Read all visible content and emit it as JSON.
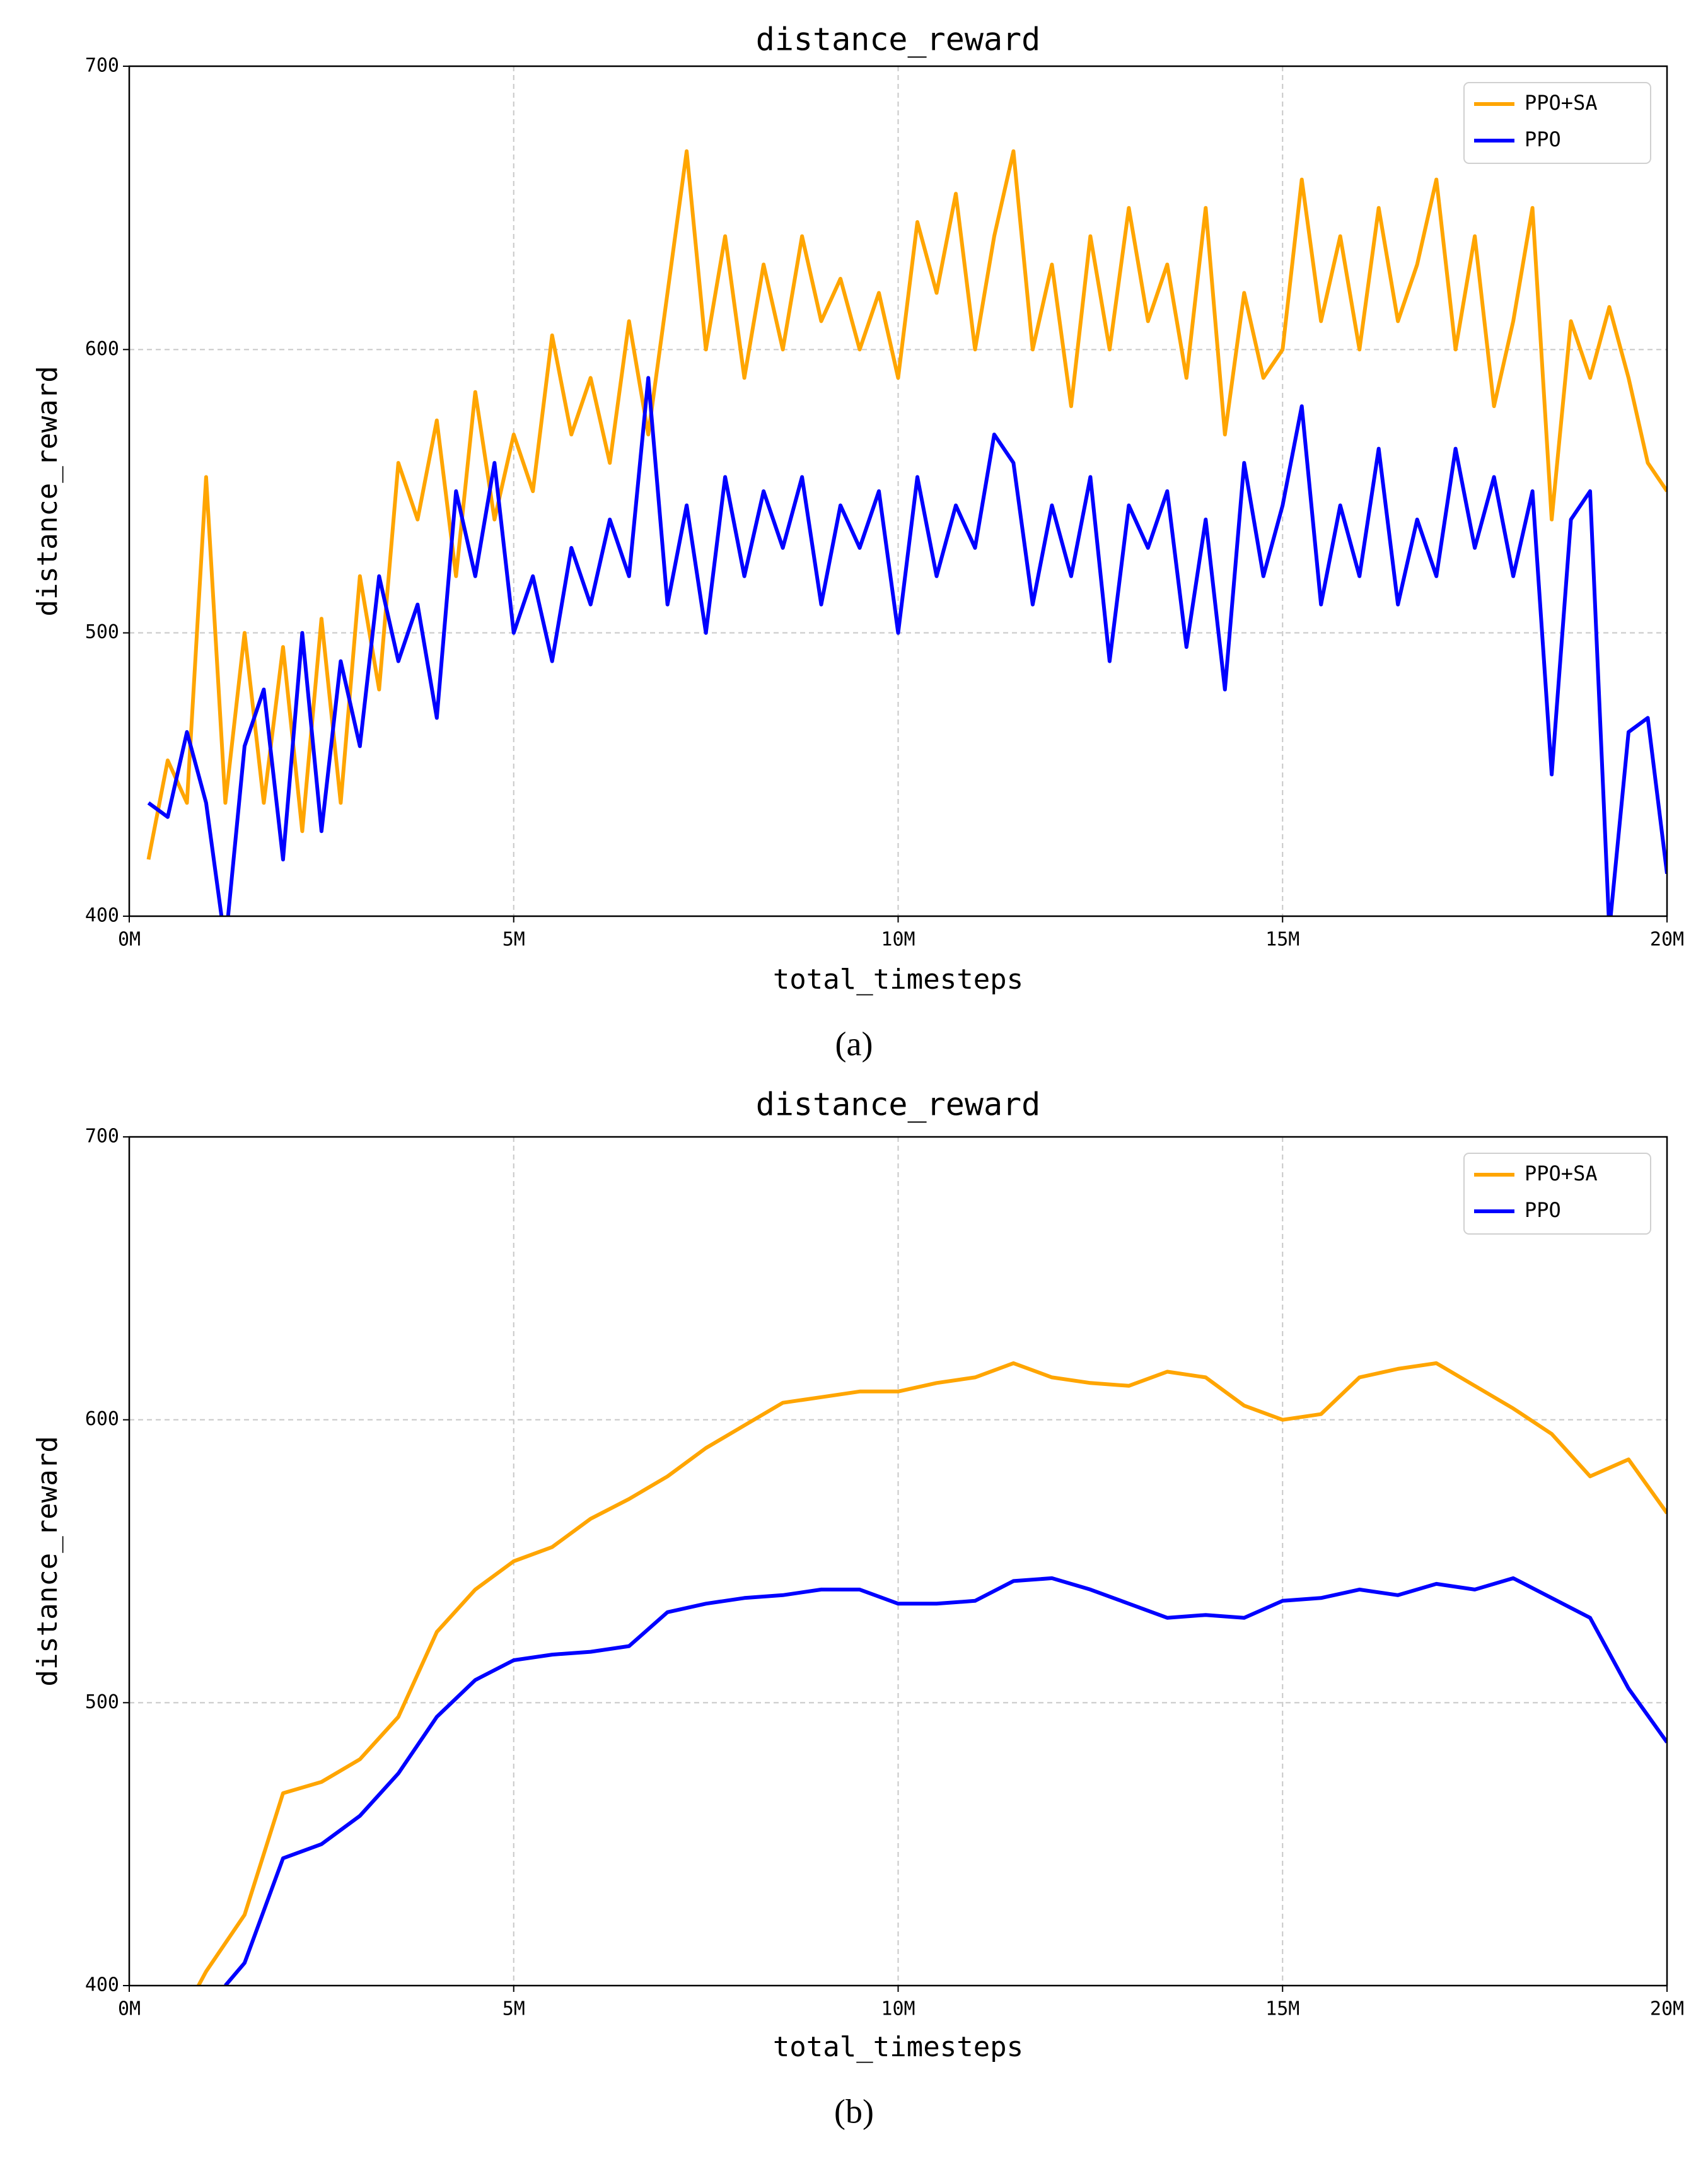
{
  "chart_data": [
    {
      "type": "line",
      "title": "distance_reward",
      "xlabel": "total_timesteps",
      "ylabel": "distance_reward",
      "caption": "(a)",
      "xlim": [
        0,
        20
      ],
      "xticks": [
        {
          "value": 0,
          "label": "0M"
        },
        {
          "value": 5,
          "label": "5M"
        },
        {
          "value": 10,
          "label": "10M"
        },
        {
          "value": 15,
          "label": "15M"
        },
        {
          "value": 20,
          "label": "20M"
        }
      ],
      "ylim": [
        400,
        700
      ],
      "yticks": [
        400,
        500,
        600,
        700
      ],
      "grid": true,
      "legend": "upper right",
      "series": [
        {
          "name": "PPO+SA",
          "color": "#ffa500",
          "x": [
            0.25,
            0.5,
            0.75,
            1.0,
            1.25,
            1.5,
            1.75,
            2.0,
            2.25,
            2.5,
            2.75,
            3.0,
            3.25,
            3.5,
            3.75,
            4.0,
            4.25,
            4.5,
            4.75,
            5.0,
            5.25,
            5.5,
            5.75,
            6.0,
            6.25,
            6.5,
            6.75,
            7.0,
            7.25,
            7.5,
            7.75,
            8.0,
            8.25,
            8.5,
            8.75,
            9.0,
            9.25,
            9.5,
            9.75,
            10.0,
            10.25,
            10.5,
            10.75,
            11.0,
            11.25,
            11.5,
            11.75,
            12.0,
            12.25,
            12.5,
            12.75,
            13.0,
            13.25,
            13.5,
            13.75,
            14.0,
            14.25,
            14.5,
            14.75,
            15.0,
            15.25,
            15.5,
            15.75,
            16.0,
            16.25,
            16.5,
            16.75,
            17.0,
            17.25,
            17.5,
            17.75,
            18.0,
            18.25,
            18.5,
            18.75,
            19.0,
            19.25,
            19.5,
            19.75,
            20.0
          ],
          "values": [
            420,
            455,
            440,
            555,
            440,
            500,
            440,
            495,
            430,
            505,
            440,
            520,
            480,
            560,
            540,
            575,
            520,
            585,
            540,
            570,
            550,
            605,
            570,
            590,
            560,
            610,
            570,
            620,
            670,
            600,
            640,
            590,
            630,
            600,
            640,
            610,
            625,
            600,
            620,
            590,
            645,
            620,
            655,
            600,
            640,
            670,
            600,
            630,
            580,
            640,
            600,
            650,
            610,
            630,
            590,
            650,
            570,
            620,
            590,
            600,
            660,
            610,
            640,
            600,
            650,
            610,
            630,
            660,
            600,
            640,
            580,
            610,
            650,
            540,
            610,
            590,
            615,
            590,
            560,
            550
          ]
        },
        {
          "name": "PPO",
          "color": "#0000ff",
          "x": [
            0.25,
            0.5,
            0.75,
            1.0,
            1.25,
            1.5,
            1.75,
            2.0,
            2.25,
            2.5,
            2.75,
            3.0,
            3.25,
            3.5,
            3.75,
            4.0,
            4.25,
            4.5,
            4.75,
            5.0,
            5.25,
            5.5,
            5.75,
            6.0,
            6.25,
            6.5,
            6.75,
            7.0,
            7.25,
            7.5,
            7.75,
            8.0,
            8.25,
            8.5,
            8.75,
            9.0,
            9.25,
            9.5,
            9.75,
            10.0,
            10.25,
            10.5,
            10.75,
            11.0,
            11.25,
            11.5,
            11.75,
            12.0,
            12.25,
            12.5,
            12.75,
            13.0,
            13.25,
            13.5,
            13.75,
            14.0,
            14.25,
            14.5,
            14.75,
            15.0,
            15.25,
            15.5,
            15.75,
            16.0,
            16.25,
            16.5,
            16.75,
            17.0,
            17.25,
            17.5,
            17.75,
            18.0,
            18.25,
            18.5,
            18.75,
            19.0,
            19.25,
            19.5,
            19.75,
            20.0
          ],
          "values": [
            440,
            435,
            465,
            440,
            390,
            460,
            480,
            420,
            500,
            430,
            490,
            460,
            520,
            490,
            510,
            470,
            550,
            520,
            560,
            500,
            520,
            490,
            530,
            510,
            540,
            520,
            590,
            510,
            545,
            500,
            555,
            520,
            550,
            530,
            555,
            510,
            545,
            530,
            550,
            500,
            555,
            520,
            545,
            530,
            570,
            560,
            510,
            545,
            520,
            555,
            490,
            545,
            530,
            550,
            495,
            540,
            480,
            560,
            520,
            545,
            580,
            510,
            545,
            520,
            565,
            510,
            540,
            520,
            565,
            530,
            555,
            520,
            550,
            450,
            540,
            550,
            395,
            465,
            470,
            415
          ]
        }
      ]
    },
    {
      "type": "line",
      "title": "distance_reward",
      "xlabel": "total_timesteps",
      "ylabel": "distance_reward",
      "caption": "(b)",
      "xlim": [
        0,
        20
      ],
      "xticks": [
        {
          "value": 0,
          "label": "0M"
        },
        {
          "value": 5,
          "label": "5M"
        },
        {
          "value": 10,
          "label": "10M"
        },
        {
          "value": 15,
          "label": "15M"
        },
        {
          "value": 20,
          "label": "20M"
        }
      ],
      "ylim": [
        400,
        700
      ],
      "yticks": [
        400,
        500,
        600,
        700
      ],
      "grid": true,
      "legend": "upper right",
      "series": [
        {
          "name": "PPO+SA",
          "color": "#ffa500",
          "x": [
            0.9,
            1.0,
            1.5,
            2.0,
            2.5,
            3.0,
            3.5,
            4.0,
            4.5,
            5.0,
            5.5,
            6.0,
            6.5,
            7.0,
            7.5,
            8.0,
            8.5,
            9.0,
            9.5,
            10.0,
            10.5,
            11.0,
            11.5,
            12.0,
            12.5,
            13.0,
            13.5,
            14.0,
            14.5,
            15.0,
            15.5,
            16.0,
            16.5,
            17.0,
            17.5,
            18.0,
            18.5,
            19.0,
            19.5,
            20.0
          ],
          "values": [
            400,
            405,
            425,
            468,
            472,
            480,
            495,
            525,
            540,
            550,
            555,
            565,
            572,
            580,
            590,
            598,
            606,
            608,
            610,
            610,
            613,
            615,
            620,
            615,
            613,
            612,
            617,
            615,
            605,
            600,
            602,
            615,
            618,
            620,
            612,
            604,
            595,
            580,
            586,
            567
          ]
        },
        {
          "name": "PPO",
          "color": "#0000ff",
          "x": [
            1.25,
            1.5,
            2.0,
            2.5,
            3.0,
            3.5,
            4.0,
            4.5,
            5.0,
            5.5,
            6.0,
            6.5,
            7.0,
            7.5,
            8.0,
            8.5,
            9.0,
            9.5,
            10.0,
            10.5,
            11.0,
            11.5,
            12.0,
            12.5,
            13.0,
            13.5,
            14.0,
            14.5,
            15.0,
            15.5,
            16.0,
            16.5,
            17.0,
            17.5,
            18.0,
            18.5,
            19.0,
            19.5,
            20.0
          ],
          "values": [
            400,
            408,
            445,
            450,
            460,
            475,
            495,
            508,
            515,
            517,
            518,
            520,
            532,
            535,
            537,
            538,
            540,
            540,
            535,
            535,
            536,
            543,
            544,
            540,
            535,
            530,
            531,
            530,
            536,
            537,
            540,
            538,
            542,
            540,
            544,
            537,
            530,
            505,
            486
          ]
        }
      ]
    }
  ]
}
